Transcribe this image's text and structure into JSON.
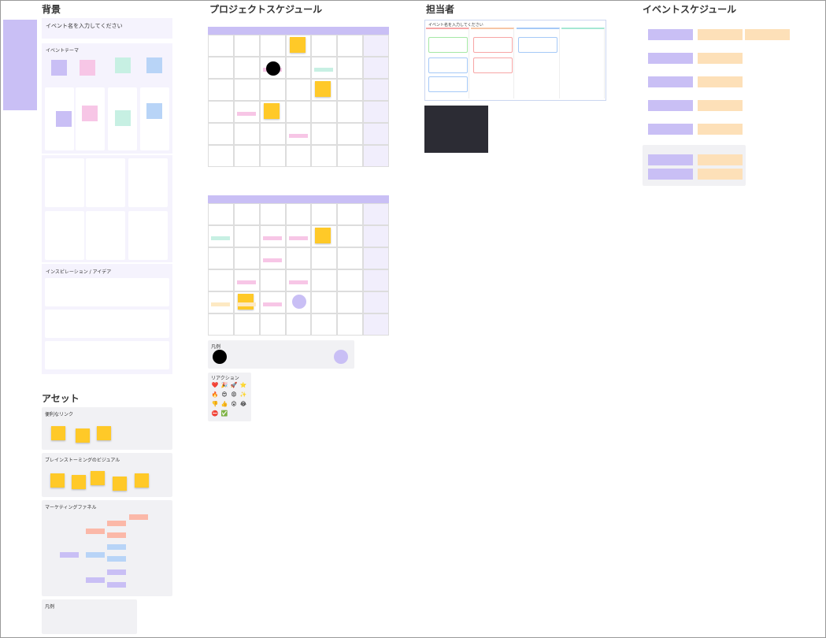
{
  "sections": {
    "background": "背景",
    "schedule": "プロジェクトスケジュール",
    "owners": "担当者",
    "event_schedule": "イベントスケジュール",
    "assets": "アセット"
  },
  "background": {
    "event_name": "イベント名を入力してください",
    "theme": "イベントテーマ",
    "inspiration": "インスピレーション / アイデア"
  },
  "assets": {
    "links": "便利なリンク",
    "brainstorm": "ブレインストーミングのビジュアル",
    "funnel": "マーケティングファネル",
    "legend": "凡例"
  },
  "schedule": {
    "legend_title": "凡例",
    "reactions_title": "リアクション",
    "reactions": [
      "❤️",
      "🎉",
      "🚀",
      "⭐",
      "🔥",
      "😍",
      "😡",
      "✨",
      "👎",
      "👍",
      "😮",
      "😂",
      "⛔",
      "✅"
    ]
  },
  "owners": {
    "board_title": "イベント名を入力してください"
  }
}
